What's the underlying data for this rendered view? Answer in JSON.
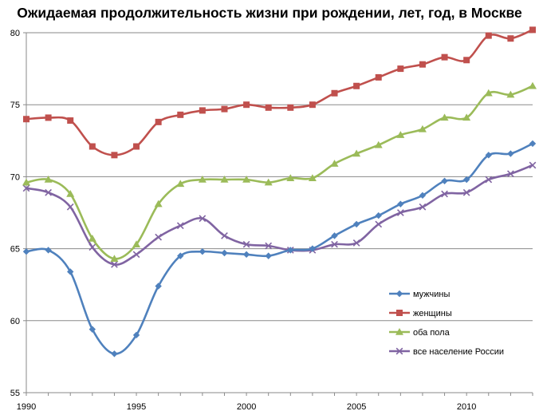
{
  "chart_data": {
    "type": "line",
    "title": "Ожидаемая продолжительность жизни при рождении, лет, год, в Москве",
    "xlabel": "",
    "ylabel": "",
    "x": [
      1990,
      1991,
      1992,
      1993,
      1994,
      1995,
      1996,
      1997,
      1998,
      1999,
      2000,
      2001,
      2002,
      2003,
      2004,
      2005,
      2006,
      2007,
      2008,
      2009,
      2010,
      2011,
      2012,
      2013
    ],
    "xlim": [
      1990,
      2013
    ],
    "ylim": [
      55,
      80
    ],
    "x_ticks": [
      1990,
      1995,
      2000,
      2005,
      2010
    ],
    "y_ticks": [
      55,
      60,
      65,
      70,
      75,
      80
    ],
    "grid": "horizontal",
    "legend_position": "bottom-right",
    "series": [
      {
        "name": "мужчины",
        "color": "#4F81BD",
        "marker": "diamond",
        "values": [
          64.8,
          64.9,
          63.4,
          59.4,
          57.7,
          59.0,
          62.4,
          64.5,
          64.8,
          64.7,
          64.6,
          64.5,
          64.9,
          65.0,
          65.9,
          66.7,
          67.3,
          68.1,
          68.7,
          69.7,
          69.8,
          71.5,
          71.6,
          72.3
        ]
      },
      {
        "name": "женщины",
        "color": "#C0504D",
        "marker": "square",
        "values": [
          74.0,
          74.1,
          73.9,
          72.1,
          71.5,
          72.1,
          73.8,
          74.3,
          74.6,
          74.7,
          75.0,
          74.8,
          74.8,
          75.0,
          75.8,
          76.3,
          76.9,
          77.5,
          77.8,
          78.3,
          78.1,
          79.8,
          79.6,
          80.2
        ]
      },
      {
        "name": "оба пола",
        "color": "#9BBB59",
        "marker": "triangle",
        "values": [
          69.6,
          69.8,
          68.8,
          65.7,
          64.3,
          65.3,
          68.1,
          69.5,
          69.8,
          69.8,
          69.8,
          69.6,
          69.9,
          69.9,
          70.9,
          71.6,
          72.2,
          72.9,
          73.3,
          74.1,
          74.1,
          75.8,
          75.7,
          76.3
        ]
      },
      {
        "name": "все население России",
        "color": "#8064A2",
        "marker": "x",
        "values": [
          69.2,
          68.9,
          67.9,
          65.1,
          63.9,
          64.6,
          65.8,
          66.6,
          67.1,
          65.9,
          65.3,
          65.2,
          64.9,
          64.9,
          65.3,
          65.4,
          66.7,
          67.5,
          67.9,
          68.8,
          68.9,
          69.8,
          70.2,
          70.8
        ]
      }
    ]
  }
}
